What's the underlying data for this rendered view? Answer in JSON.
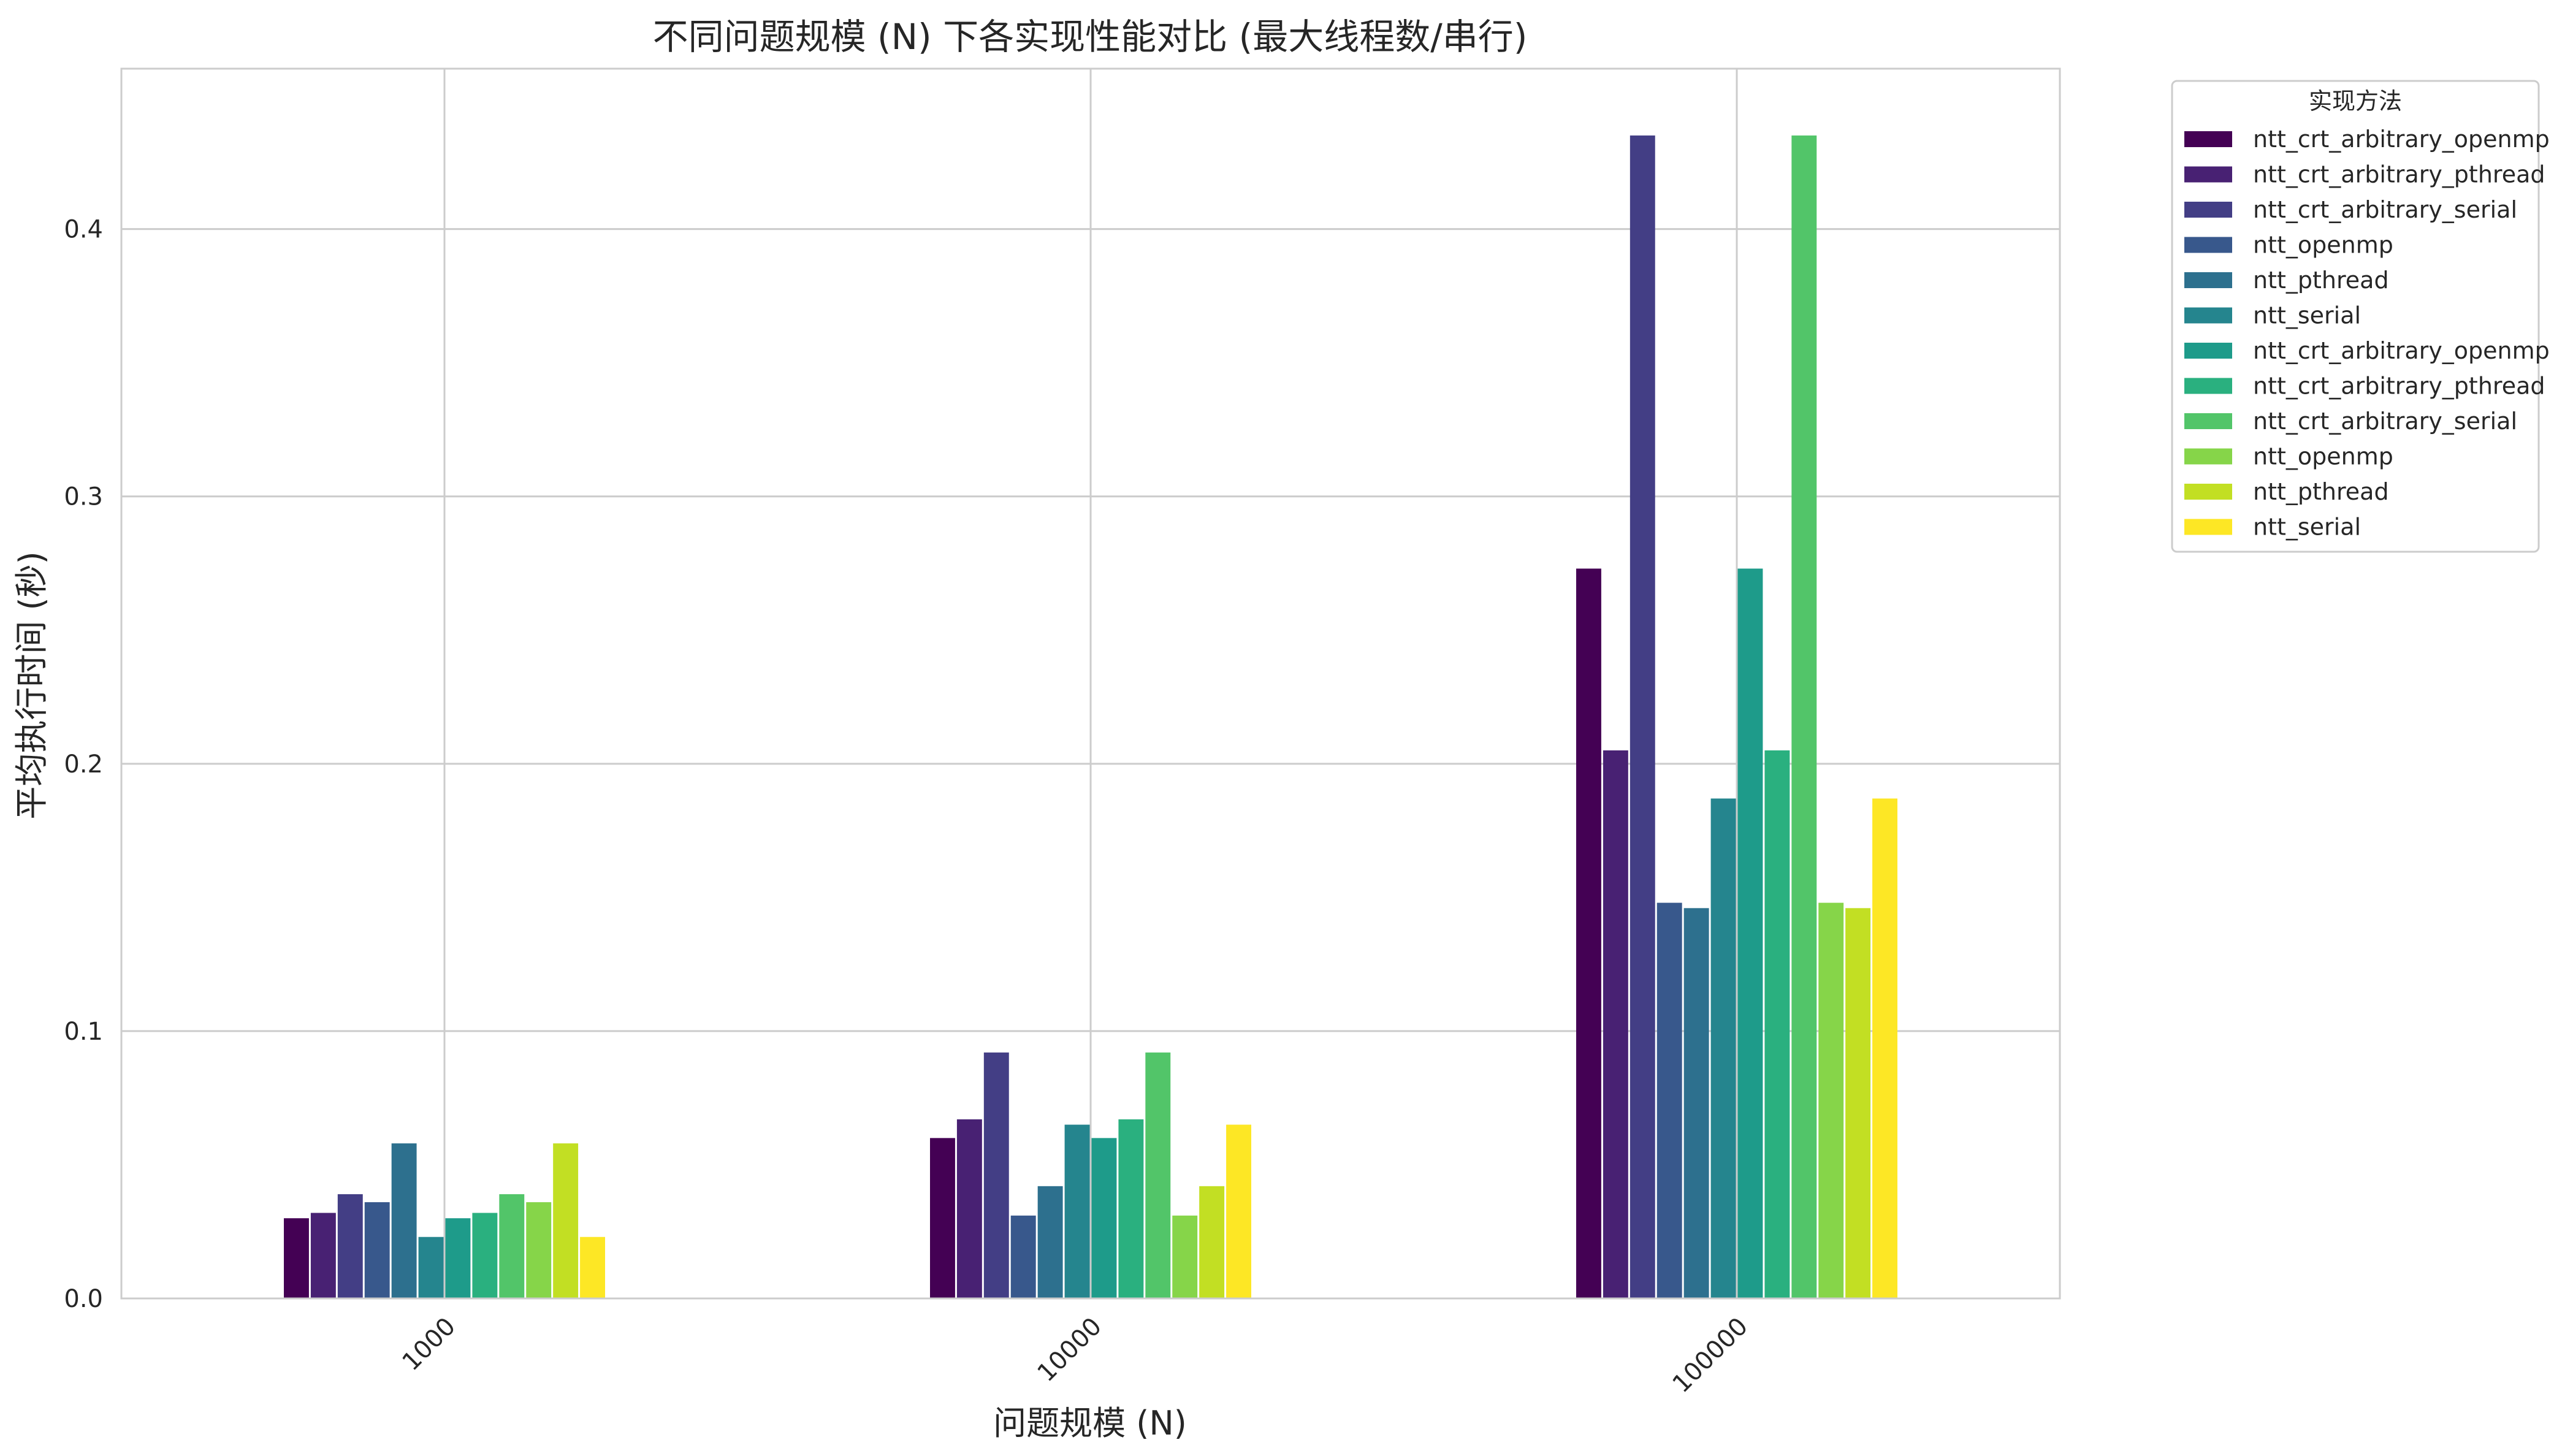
{
  "chart_data": {
    "type": "bar",
    "title": "不同问题规模 (N) 下各实现性能对比 (最大线程数/串行)",
    "xlabel": "问题规模 (N)",
    "ylabel": "平均执行时间 (秒)",
    "ylim": [
      0,
      0.46
    ],
    "yticks": [
      "0.0",
      "0.1",
      "0.2",
      "0.3",
      "0.4"
    ],
    "grid": true,
    "legend_position": "outside-top-right",
    "legend_title": "实现方法",
    "categories": [
      "1000",
      "10000",
      "100000"
    ],
    "series": [
      {
        "name": "ntt_crt_arbitrary_openmp",
        "color": "#440154",
        "values": [
          0.03,
          0.06,
          0.273
        ]
      },
      {
        "name": "ntt_crt_arbitrary_pthread",
        "color": "#482173",
        "values": [
          0.032,
          0.067,
          0.205
        ]
      },
      {
        "name": "ntt_crt_arbitrary_serial",
        "color": "#433e85",
        "values": [
          0.039,
          0.092,
          0.435
        ]
      },
      {
        "name": "ntt_openmp",
        "color": "#38588c",
        "values": [
          0.036,
          0.031,
          0.148
        ]
      },
      {
        "name": "ntt_pthread",
        "color": "#2d708e",
        "values": [
          0.058,
          0.042,
          0.146
        ]
      },
      {
        "name": "ntt_serial",
        "color": "#25858e",
        "values": [
          0.023,
          0.065,
          0.187
        ]
      },
      {
        "name": "ntt_crt_arbitrary_openmp",
        "color": "#1e9b8a",
        "values": [
          0.03,
          0.06,
          0.273
        ]
      },
      {
        "name": "ntt_crt_arbitrary_pthread",
        "color": "#2ab07f",
        "values": [
          0.032,
          0.067,
          0.205
        ]
      },
      {
        "name": "ntt_crt_arbitrary_serial",
        "color": "#52c569",
        "values": [
          0.039,
          0.092,
          0.435
        ]
      },
      {
        "name": "ntt_openmp",
        "color": "#86d549",
        "values": [
          0.036,
          0.031,
          0.148
        ]
      },
      {
        "name": "ntt_pthread",
        "color": "#c2df23",
        "values": [
          0.058,
          0.042,
          0.146
        ]
      },
      {
        "name": "ntt_serial",
        "color": "#fde725",
        "values": [
          0.023,
          0.065,
          0.187
        ]
      }
    ]
  }
}
